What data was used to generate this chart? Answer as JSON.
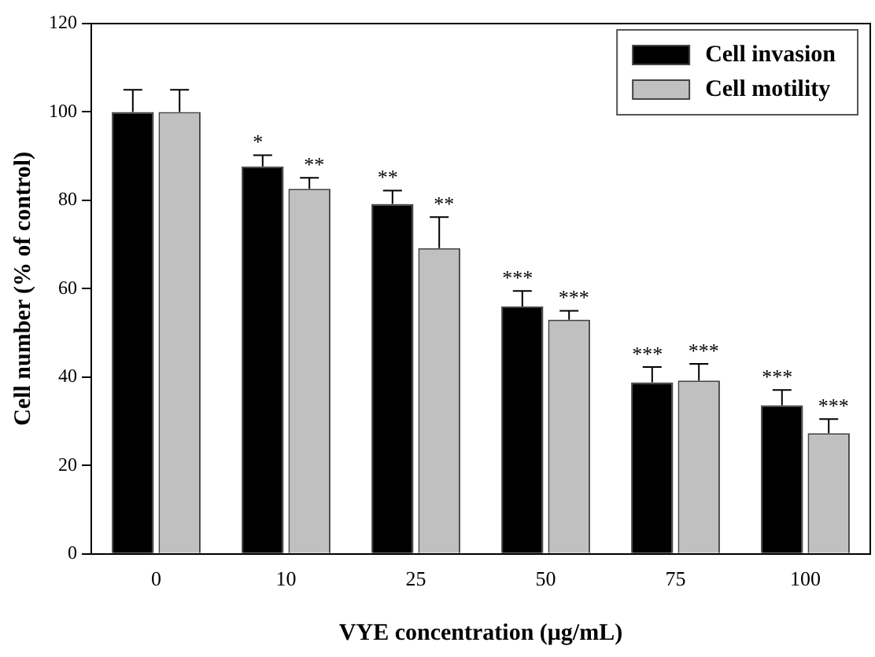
{
  "chart_data": {
    "type": "bar",
    "xlabel": "VYE concentration (μg/mL)",
    "ylabel": "Cell number (% of control)",
    "categories": [
      "0",
      "10",
      "25",
      "50",
      "75",
      "100"
    ],
    "series": [
      {
        "name": "Cell invasion",
        "color": "#000000",
        "values": [
          100,
          87.7,
          79.2,
          56,
          38.8,
          33.6
        ],
        "errors": [
          5,
          2.5,
          3,
          3.5,
          3.5,
          3.5
        ],
        "value_labels": [
          null,
          "*",
          "**",
          "***",
          "***",
          "***"
        ]
      },
      {
        "name": "Cell motility",
        "color": "#c0c0c0",
        "values": [
          100,
          82.6,
          69.2,
          53,
          39.2,
          27.3
        ],
        "errors": [
          5,
          2.5,
          7,
          2,
          3.8,
          3.2
        ],
        "value_labels": [
          null,
          "**",
          "**",
          "***",
          "***",
          "***"
        ]
      }
    ],
    "ylim": [
      0,
      120
    ],
    "yticks": [
      0,
      20,
      40,
      60,
      80,
      100,
      120
    ],
    "grid": false,
    "legend": "top right"
  }
}
